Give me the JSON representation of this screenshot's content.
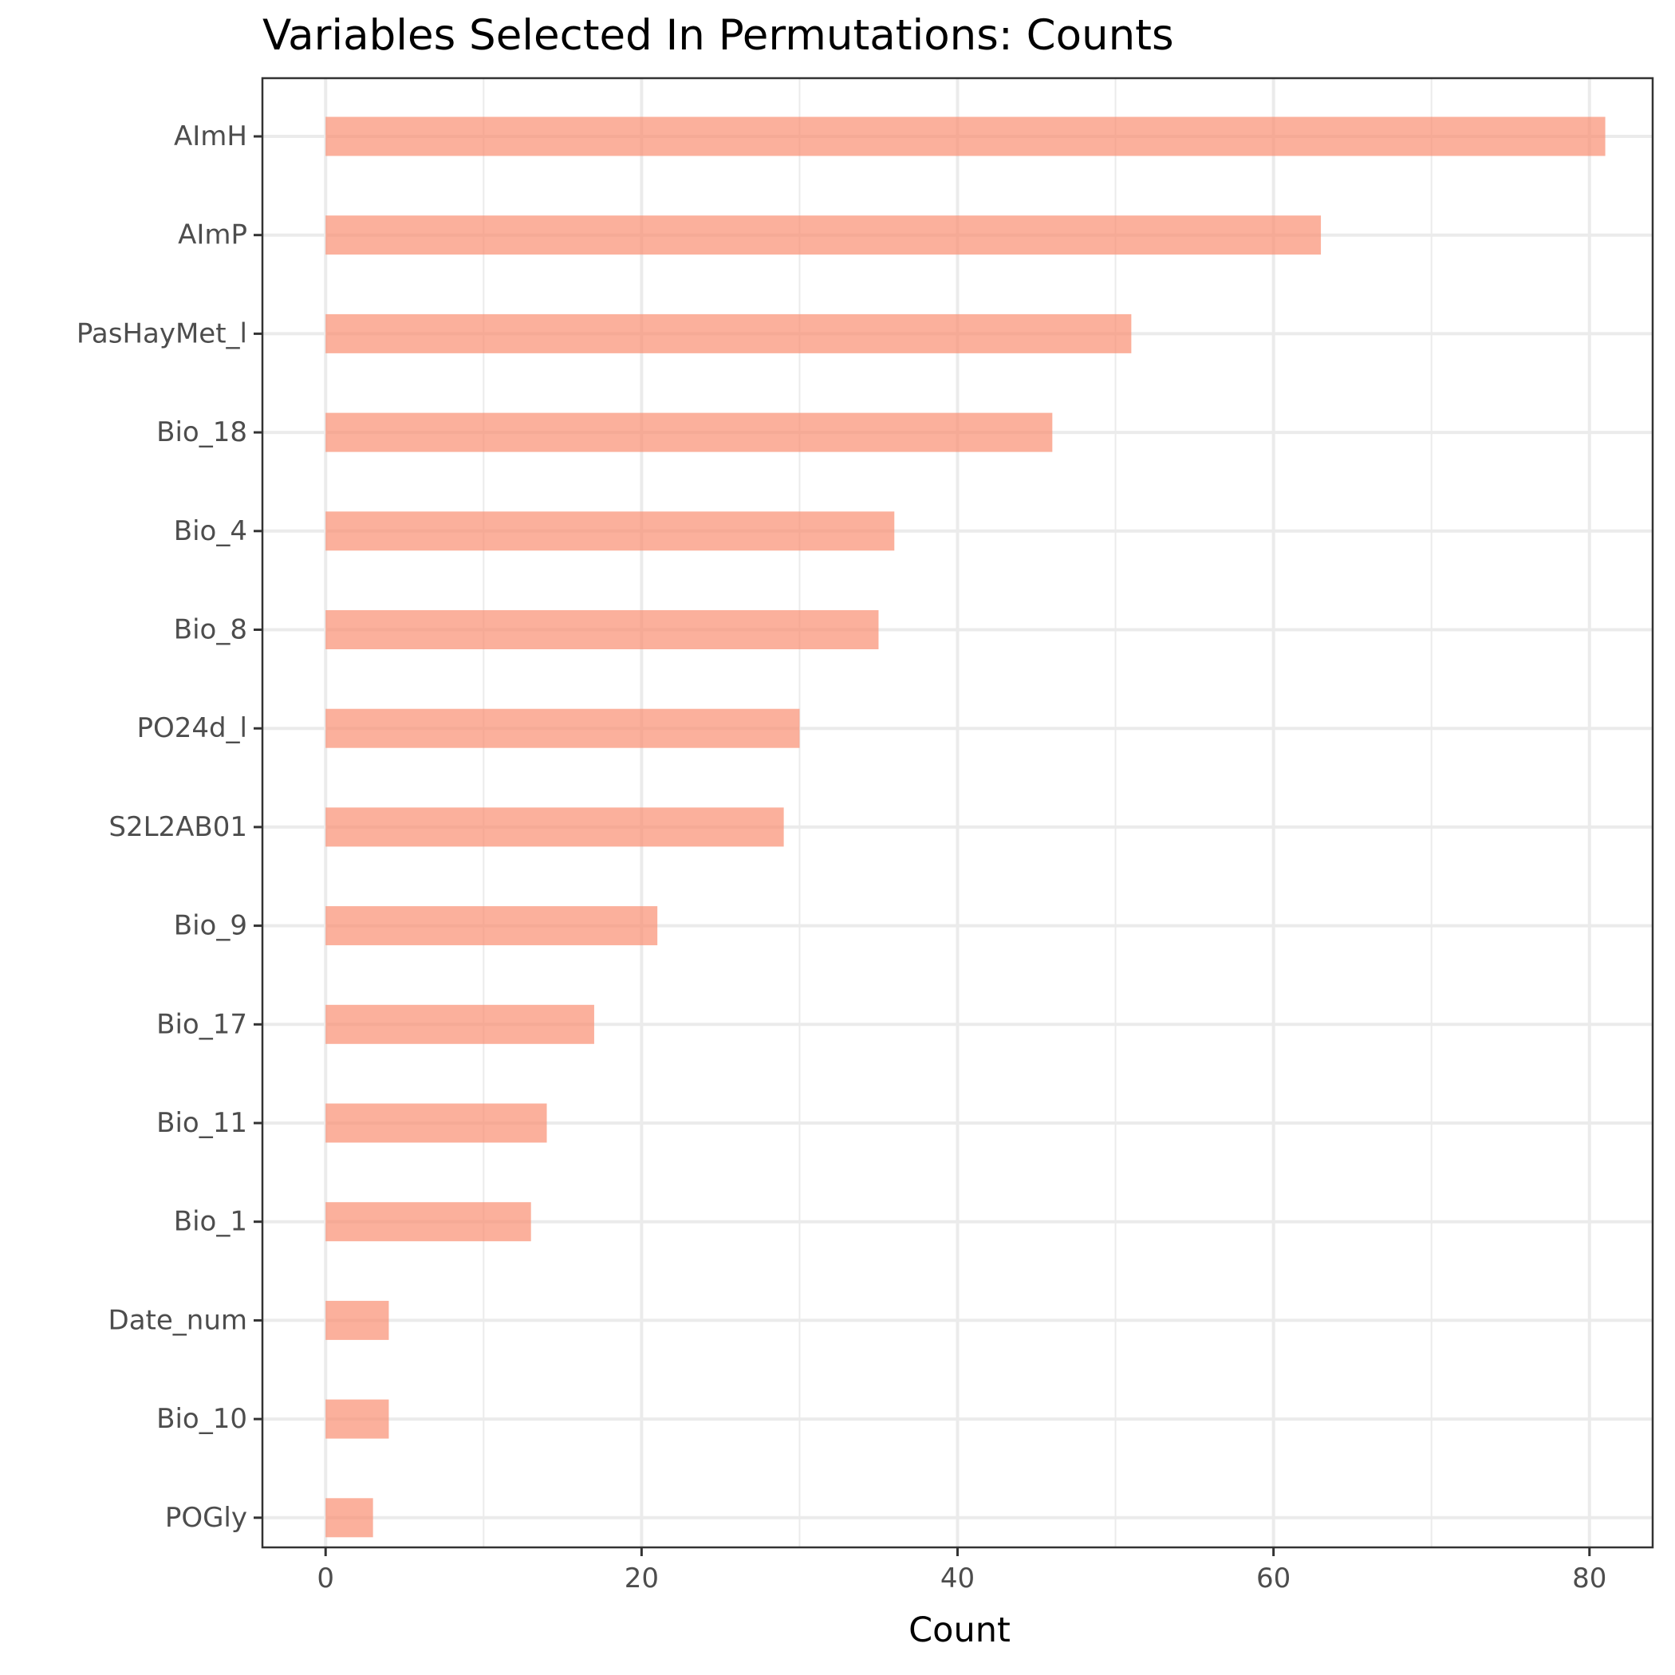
{
  "chart_data": {
    "type": "bar",
    "orientation": "horizontal",
    "title": "Variables Selected In Permutations: Counts",
    "xlabel": "Count",
    "ylabel": "",
    "categories": [
      "AImH",
      "AImP",
      "PasHayMet_l",
      "Bio_18",
      "Bio_4",
      "Bio_8",
      "PO24d_l",
      "S2L2AB01",
      "Bio_9",
      "Bio_17",
      "Bio_11",
      "Bio_1",
      "Date_num",
      "Bio_10",
      "POGly"
    ],
    "values": [
      81,
      63,
      51,
      46,
      36,
      35,
      30,
      29,
      21,
      17,
      14,
      13,
      4,
      4,
      3
    ],
    "xlim": [
      -4,
      84
    ],
    "xticks": [
      0,
      20,
      40,
      60,
      80
    ],
    "xticks_labels": [
      "0",
      "20",
      "40",
      "60",
      "80"
    ],
    "bar_color": "#fa8f72",
    "grid": true,
    "legend": "none"
  }
}
